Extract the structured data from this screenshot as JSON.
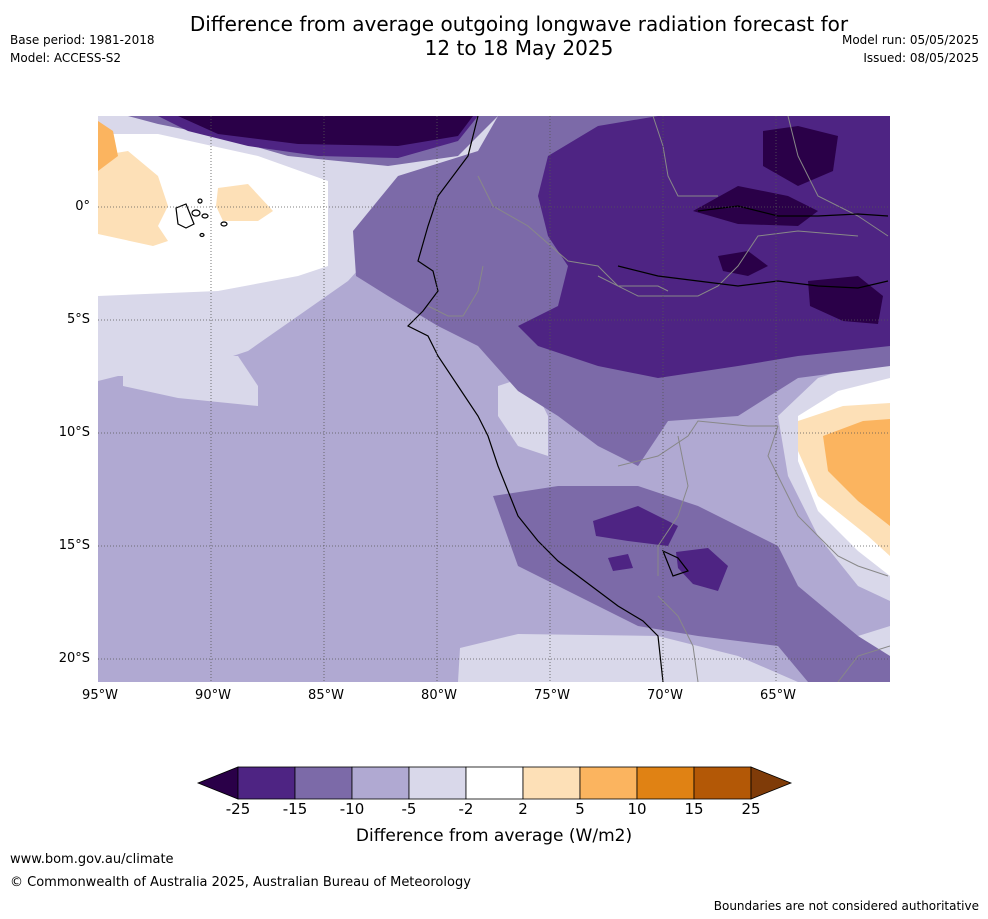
{
  "title_line1": "Difference from average outgoing longwave radiation forecast for",
  "title_line2": "12 to 18 May 2025",
  "base_period": "Base period: 1981-2018",
  "model": "Model: ACCESS-S2",
  "model_run": "Model run: 05/05/2025",
  "issued": "Issued: 08/05/2025",
  "lat_labels": [
    "0°",
    "5°S",
    "10°S",
    "15°S",
    "20°S"
  ],
  "lon_labels": [
    "95°W",
    "90°W",
    "85°W",
    "80°W",
    "75°W",
    "70°W",
    "65°W"
  ],
  "colorbar": {
    "ticks": [
      "-25",
      "-15",
      "-10",
      "-5",
      "-2",
      "2",
      "5",
      "10",
      "15",
      "25"
    ],
    "label": "Difference from average (W/m2)",
    "colors": [
      "#2a0048",
      "#4e2483",
      "#7c6aa8",
      "#b0a9d2",
      "#d9d8ea",
      "#ffffff",
      "#fde0b7",
      "#fbb45f",
      "#e08214",
      "#b35806",
      "#7f3b08"
    ]
  },
  "footer": {
    "url": "www.bom.gov.au/climate",
    "copyright": "© Commonwealth of Australia 2025, Australian Bureau of Meteorology",
    "disclaimer": "Boundaries are not considered authoritative"
  }
}
